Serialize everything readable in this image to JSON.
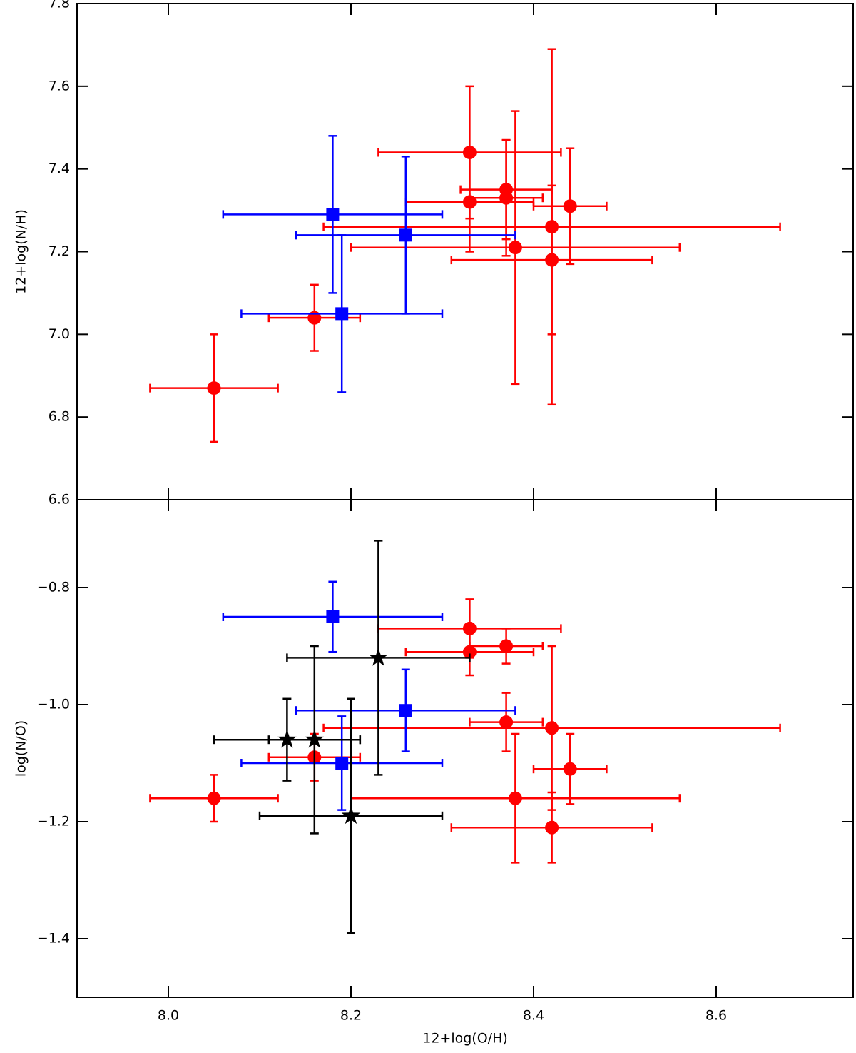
{
  "chart_data": [
    {
      "type": "scatter",
      "ylabel": "12+log(N/H)",
      "xlim": [
        7.9,
        8.75
      ],
      "ylim": [
        6.6,
        7.8
      ],
      "yticks": [
        6.6,
        6.8,
        {
          "value": 7.0,
          "label": "7.0"
        },
        7.2,
        7.4,
        7.6,
        7.8
      ],
      "series": [
        {
          "color": "#ff0000",
          "marker": "circle",
          "x": [
            8.05,
            8.16,
            8.33,
            8.33,
            8.37,
            8.37,
            8.38,
            8.42,
            8.42,
            8.44
          ],
          "values": [
            6.87,
            7.04,
            7.44,
            7.32,
            7.35,
            7.33,
            7.21,
            7.26,
            7.18,
            7.31
          ],
          "xerr": [
            0.07,
            0.05,
            0.1,
            0.07,
            0.05,
            0.04,
            0.18,
            0.25,
            0.11,
            0.04
          ],
          "yerr": [
            0.13,
            0.08,
            0.16,
            0.12,
            0.12,
            0.14,
            0.33,
            0.43,
            0.18,
            0.14
          ]
        },
        {
          "color": "#0000ff",
          "marker": "square",
          "x": [
            8.18,
            8.26,
            8.19
          ],
          "values": [
            7.29,
            7.24,
            7.05
          ],
          "xerr": [
            0.12,
            0.12,
            0.11
          ],
          "yerr": [
            0.19,
            0.19,
            0.19
          ]
        }
      ]
    },
    {
      "type": "scatter",
      "xlabel": "12+log(O/H)",
      "ylabel": "log(N/O)",
      "xlim": [
        7.9,
        8.75
      ],
      "ylim": [
        -1.5,
        -0.65
      ],
      "xticks": [
        {
          "value": 8.0,
          "label": "8.0"
        },
        8.2,
        8.4,
        8.6
      ],
      "yticks": [
        {
          "value": -1.4,
          "label": "−1.4"
        },
        {
          "value": -1.2,
          "label": "−1.2"
        },
        {
          "value": -1.0,
          "label": "−1.0"
        },
        {
          "value": -0.8,
          "label": "−0.8"
        }
      ],
      "series": [
        {
          "color": "#ff0000",
          "marker": "circle",
          "x": [
            8.05,
            8.16,
            8.33,
            8.33,
            8.37,
            8.37,
            8.38,
            8.42,
            8.42,
            8.44
          ],
          "values": [
            -1.16,
            -1.09,
            -0.87,
            -0.91,
            -0.9,
            -1.03,
            -1.16,
            -1.04,
            -1.21,
            -1.11
          ],
          "xerr": [
            0.07,
            0.05,
            0.1,
            0.07,
            0.04,
            0.04,
            0.18,
            0.25,
            0.11,
            0.04
          ],
          "yerr": [
            0.04,
            0.04,
            0.05,
            0.04,
            0.03,
            0.05,
            0.11,
            0.14,
            0.06,
            0.06
          ]
        },
        {
          "color": "#0000ff",
          "marker": "square",
          "x": [
            8.18,
            8.26,
            8.19
          ],
          "values": [
            -0.85,
            -1.01,
            -1.1
          ],
          "xerr": [
            0.12,
            0.12,
            0.11
          ],
          "yerr": [
            0.06,
            0.07,
            0.08
          ]
        },
        {
          "color": "#000000",
          "marker": "star",
          "x": [
            8.23,
            8.13,
            8.16,
            8.2
          ],
          "values": [
            -0.92,
            -1.06,
            -1.06,
            -1.19
          ],
          "xerr": [
            0.1,
            0.08,
            0.05,
            0.1
          ],
          "yerr": [
            0.2,
            0.07,
            0.16,
            0.2
          ]
        }
      ]
    }
  ]
}
